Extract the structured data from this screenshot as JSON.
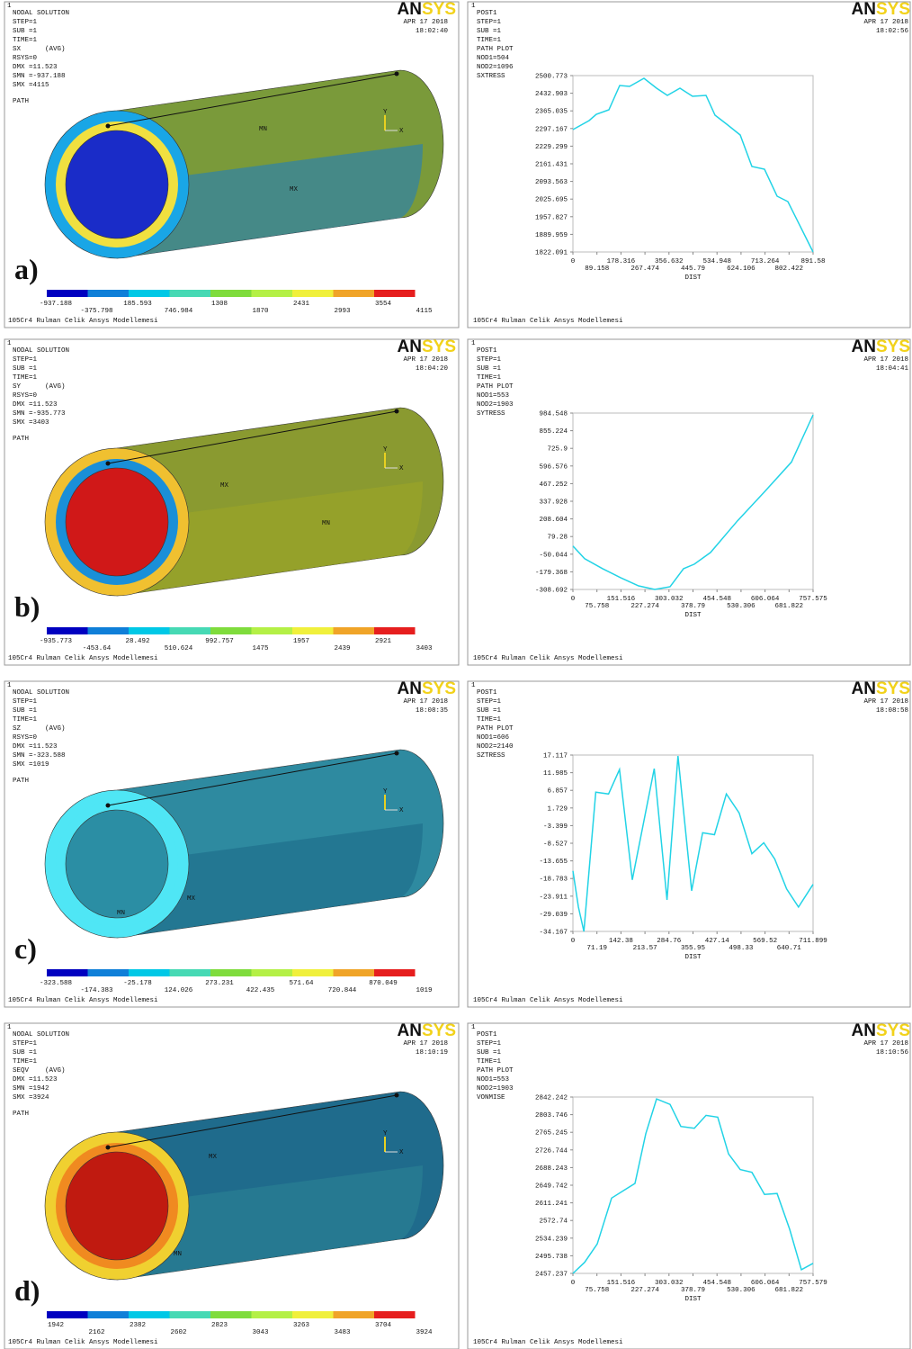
{
  "panels": [
    {
      "label": "a)",
      "left": {
        "id": "1",
        "header": "NODAL SOLUTION",
        "info": [
          "STEP=1",
          "SUB =1",
          "TIME=1",
          "SX      (AVG)",
          "RSYS=0",
          "DMX =11.523",
          "SMN =-937.188",
          "SMX =4115"
        ],
        "path": "PATH",
        "date": "APR 17 2018",
        "time": "18:02:40",
        "logo": [
          "AN",
          "SYS"
        ],
        "tube_labels": [
          "MN",
          "MX"
        ],
        "axes": [
          "Y",
          "X"
        ],
        "colorbar": [
          "-937.188",
          "-375.798",
          "185.593",
          "746.984",
          "1308",
          "1870",
          "2431",
          "2993",
          "3554",
          "4115"
        ],
        "footer": "105Cr4 Rulman Celik Ansys Modellemesi"
      },
      "right": {
        "id": "1",
        "header": "POST1",
        "info": [
          "STEP=1",
          "SUB =1",
          "TIME=1",
          "PATH PLOT",
          "NOD1=504",
          "NOD2=1096"
        ],
        "legend": "SXTRESS",
        "date": "APR 17 2018",
        "time": "18:02:56",
        "logo": [
          "AN",
          "SYS"
        ],
        "footer": "105Cr4 Rulman Celik Ansys Modellemesi",
        "chart": {
          "type": "line",
          "color": "#22d3e6",
          "xlabel": "DIST",
          "x": [
            0,
            60.1,
            86.8,
            133.6,
            173.6,
            210.4,
            263.8,
            310.5,
            350.6,
            397.3,
            444.1,
            494.2,
            527.6,
            571.0,
            621.1,
            664.5,
            711.2,
            758.0,
            798.0,
            891.58
          ],
          "values": [
            2293.0,
            2327.6,
            2351.9,
            2369.2,
            2462.7,
            2459.2,
            2490.4,
            2452.3,
            2424.6,
            2452.3,
            2421.1,
            2424.6,
            2348.4,
            2313.8,
            2272.2,
            2151.0,
            2140.6,
            2036.8,
            2016.0,
            1822.091
          ],
          "xlim": [
            0,
            891.58
          ],
          "ylim": [
            1822.091,
            2500.773
          ],
          "xticks": [
            0,
            89.158,
            178.316,
            267.474,
            356.632,
            445.79,
            534.948,
            624.106,
            713.264,
            802.422,
            891.58
          ],
          "yticks": [
            2500.773,
            2432.903,
            2365.035,
            2297.167,
            2229.299,
            2161.431,
            2093.563,
            2025.695,
            1957.827,
            1889.959,
            1822.091
          ]
        }
      }
    },
    {
      "label": "b)",
      "left": {
        "id": "1",
        "header": "NODAL SOLUTION",
        "info": [
          "STEP=1",
          "SUB =1",
          "TIME=1",
          "SY      (AVG)",
          "RSYS=0",
          "DMX =11.523",
          "SMN =-935.773",
          "SMX =3403"
        ],
        "path": "PATH",
        "date": "APR 17 2018",
        "time": "18:04:20",
        "logo": [
          "AN",
          "SYS"
        ],
        "tube_labels": [
          "MX",
          "MN"
        ],
        "axes": [
          "Y",
          "X"
        ],
        "colorbar": [
          "-935.773",
          "-453.64",
          "28.492",
          "510.624",
          "992.757",
          "1475",
          "1957",
          "2439",
          "2921",
          "3403"
        ],
        "footer": "105Cr4 Rulman Celik Ansys Modellemesi"
      },
      "right": {
        "id": "1",
        "header": "POST1",
        "info": [
          "STEP=1",
          "SUB =1",
          "TIME=1",
          "PATH PLOT",
          "NOD1=553",
          "NOD2=1903"
        ],
        "legend": "SYTRESS",
        "date": "APR 17 2018",
        "time": "18:04:41",
        "logo": [
          "AN",
          "SYS"
        ],
        "footer": "105Cr4 Rulman Celik Ansys Modellemesi",
        "chart": {
          "type": "line",
          "color": "#22d3e6",
          "xlabel": "DIST",
          "x": [
            0,
            36.9,
            93.6,
            150.4,
            207.1,
            258.2,
            306.4,
            349.0,
            383.0,
            434.1,
            519.2,
            604.3,
            689.4,
            757.5
          ],
          "values": [
            9.6,
            -83.3,
            -156.3,
            -222.5,
            -282.2,
            -308.7,
            -288.8,
            -156.3,
            -123.0,
            -37.3,
            194.8,
            407.1,
            625.9,
            971.3
          ],
          "xlim": [
            0,
            757.575
          ],
          "ylim": [
            -308.692,
            984.548
          ],
          "xticks": [
            0,
            75.758,
            151.516,
            227.274,
            303.032,
            378.79,
            454.548,
            530.306,
            606.064,
            681.822,
            757.575
          ],
          "yticks": [
            984.548,
            855.224,
            725.9,
            596.576,
            467.252,
            337.928,
            208.604,
            79.28,
            -50.044,
            -179.368,
            -308.692
          ]
        }
      }
    },
    {
      "label": "c)",
      "left": {
        "id": "1",
        "header": "NODAL SOLUTION",
        "info": [
          "STEP=1",
          "SUB =1",
          "TIME=1",
          "SZ      (AVG)",
          "RSYS=0",
          "DMX =11.523",
          "SMN =-323.588",
          "SMX =1019"
        ],
        "path": "PATH",
        "date": "APR 17 2018",
        "time": "18:08:35",
        "logo": [
          "AN",
          "SYS"
        ],
        "tube_labels": [
          "MX",
          "MN"
        ],
        "axes": [
          "Y",
          "X"
        ],
        "colorbar": [
          "-323.588",
          "-174.383",
          "-25.178",
          "124.026",
          "273.231",
          "422.435",
          "571.64",
          "720.844",
          "870.049",
          "1019"
        ],
        "footer": "105Cr4 Rulman Celik Ansys Modellemesi"
      },
      "right": {
        "id": "1",
        "header": "POST1",
        "info": [
          "STEP=1",
          "SUB =1",
          "TIME=1",
          "PATH PLOT",
          "NOD1=606",
          "NOD2=2140"
        ],
        "legend": "SZTRESS",
        "date": "APR 17 2018",
        "time": "18:08:58",
        "logo": [
          "AN",
          "SYS"
        ],
        "footer": "105Cr4 Rulman Celik Ansys Modellemesi",
        "chart": {
          "type": "line",
          "color": "#22d3e6",
          "xlabel": "DIST",
          "x": [
            0,
            16.2,
            32.5,
            67.7,
            105.6,
            138.0,
            175.9,
            240.9,
            278.8,
            311.3,
            351.9,
            384.4,
            419.6,
            454.8,
            492.7,
            530.6,
            565.7,
            598.2,
            633.4,
            668.6,
            711.899
          ],
          "values": [
            -16.55,
            -27.07,
            -34.17,
            6.33,
            5.8,
            12.91,
            -19.18,
            13.17,
            -24.97,
            16.85,
            -22.34,
            -5.5,
            -6.03,
            5.81,
            0.28,
            -11.55,
            -8.4,
            -13.13,
            -21.82,
            -27.07,
            -20.49
          ],
          "xlim": [
            0,
            711.899
          ],
          "ylim": [
            -34.167,
            17.117
          ],
          "xticks": [
            0,
            71.19,
            142.38,
            213.57,
            284.76,
            355.95,
            427.14,
            498.33,
            569.52,
            640.71,
            711.899
          ],
          "yticks": [
            17.117,
            11.985,
            6.857,
            1.729,
            -3.399,
            -8.527,
            -13.655,
            -18.783,
            -23.911,
            -29.039,
            -34.167
          ]
        }
      }
    },
    {
      "label": "d)",
      "left": {
        "id": "1",
        "header": "NODAL SOLUTION",
        "info": [
          "STEP=1",
          "SUB =1",
          "TIME=1",
          "SEQV    (AVG)",
          "DMX =11.523",
          "SMN =1942",
          "SMX =3924"
        ],
        "path": "PATH",
        "date": "APR 17 2018",
        "time": "18:10:19",
        "logo": [
          "AN",
          "SYS"
        ],
        "tube_labels": [
          "MX",
          "MN"
        ],
        "axes": [
          "Y",
          "X"
        ],
        "colorbar": [
          "1942",
          "2162",
          "2382",
          "2602",
          "2823",
          "3043",
          "3263",
          "3483",
          "3704",
          "3924"
        ],
        "footer": "105Cr4 Rulman Celik Ansys Modellemesi"
      },
      "right": {
        "id": "1",
        "header": "POST1",
        "info": [
          "STEP=1",
          "SUB =1",
          "TIME=1",
          "PATH PLOT",
          "NOD1=553",
          "NOD2=1903"
        ],
        "legend": "VONMISE",
        "date": "APR 17 2018",
        "time": "18:10:56",
        "logo": [
          "AN",
          "SYS"
        ],
        "footer": "105Cr4 Rulman Celik Ansys Modellemesi",
        "chart": {
          "type": "line",
          "color": "#22d3e6",
          "xlabel": "DIST",
          "x": [
            0,
            36.9,
            76.6,
            122.0,
            158.9,
            195.8,
            229.8,
            263.9,
            306.4,
            340.5,
            383.1,
            419.9,
            456.8,
            490.9,
            527.8,
            564.7,
            604.4,
            644.1,
            683.8,
            720.7,
            757.579
          ],
          "values": [
            2457.2,
            2481.3,
            2521.4,
            2621.6,
            2637.7,
            2653.7,
            2762.0,
            2838.2,
            2826.2,
            2778.1,
            2774.1,
            2802.2,
            2798.2,
            2718.0,
            2683.9,
            2677.8,
            2629.7,
            2631.7,
            2553.5,
            2465.3,
            2479.3
          ],
          "xlim": [
            0,
            757.579
          ],
          "ylim": [
            2457.237,
            2842.242
          ],
          "xticks": [
            0,
            75.758,
            151.516,
            227.274,
            303.032,
            378.79,
            454.548,
            530.306,
            606.064,
            681.822,
            757.579
          ],
          "yticks": [
            2842.242,
            2803.746,
            2765.245,
            2726.744,
            2688.243,
            2649.742,
            2611.241,
            2572.74,
            2534.239,
            2495.738,
            2457.237
          ]
        }
      }
    }
  ]
}
